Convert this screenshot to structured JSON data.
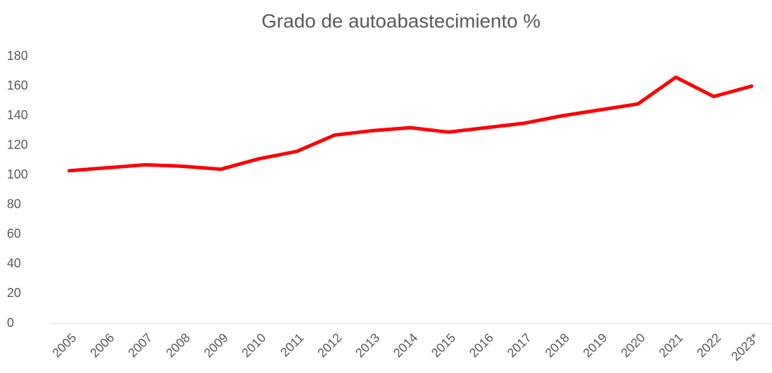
{
  "chart_data": {
    "type": "line",
    "title": "Grado de autoabastecimiento %",
    "categories": [
      "2005",
      "2006",
      "2007",
      "2008",
      "2009",
      "2010",
      "2011",
      "2012",
      "2013",
      "2014",
      "2015",
      "2016",
      "2017",
      "2018",
      "2019",
      "2020",
      "2021",
      "2022",
      "2023*"
    ],
    "values": [
      103,
      105,
      107,
      106,
      104,
      111,
      116,
      127,
      130,
      132,
      129,
      132,
      135,
      140,
      144,
      148,
      166,
      153,
      160
    ],
    "color": "#ff0000",
    "ylim": [
      0,
      180
    ],
    "yticks": [
      0,
      20,
      40,
      60,
      80,
      100,
      120,
      140,
      160,
      180
    ],
    "grid": false
  }
}
